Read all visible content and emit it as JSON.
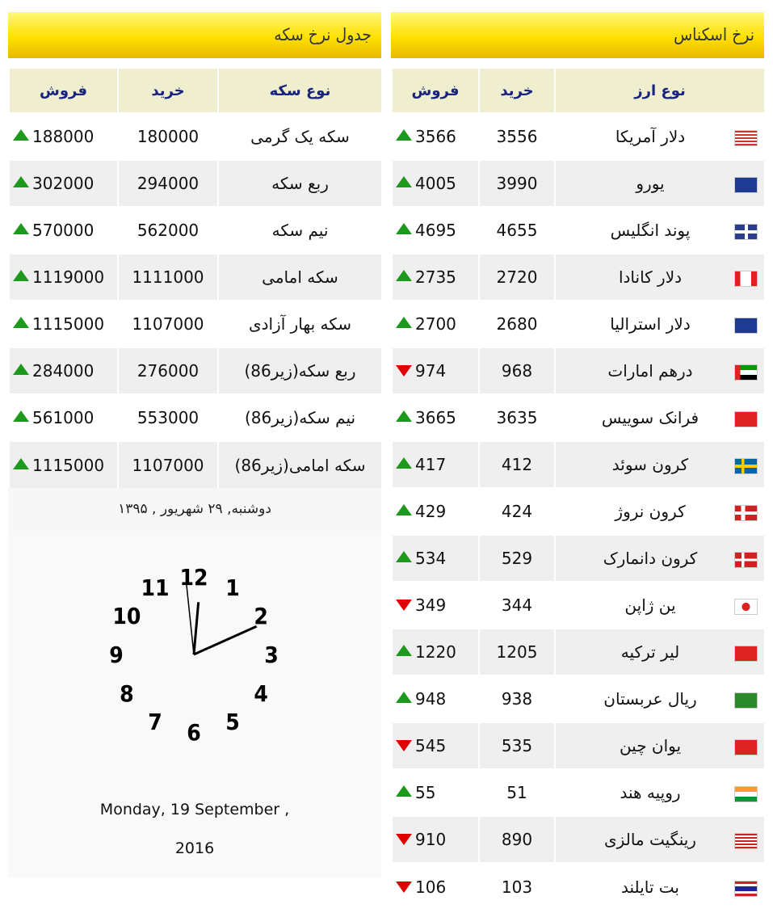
{
  "coin": {
    "title": "جدول نرخ سکه",
    "headers": {
      "name": "نوع سکه",
      "buy": "خرید",
      "sell": "فروش"
    },
    "rows": [
      {
        "name": "سکه یک گرمی",
        "buy": "180000",
        "sell": "188000",
        "trend": "up"
      },
      {
        "name": "ربع سکه",
        "buy": "294000",
        "sell": "302000",
        "trend": "up"
      },
      {
        "name": "نیم سکه",
        "buy": "562000",
        "sell": "570000",
        "trend": "up"
      },
      {
        "name": "سکه امامی",
        "buy": "1111000",
        "sell": "1119000",
        "trend": "up"
      },
      {
        "name": "سکه بهار آزادی",
        "buy": "1107000",
        "sell": "1115000",
        "trend": "up"
      },
      {
        "name": "ربع سکه(زیر86)",
        "buy": "276000",
        "sell": "284000",
        "trend": "up"
      },
      {
        "name": "نیم سکه(زیر86)",
        "buy": "553000",
        "sell": "561000",
        "trend": "up"
      },
      {
        "name": "سکه امامی(زیر86)",
        "buy": "1107000",
        "sell": "1115000",
        "trend": "up"
      }
    ],
    "date_fa": "دوشنبه, ۲۹ شهریور , ۱۳۹۵",
    "clock": {
      "time": "12:10:59"
    },
    "date_en_line1": "Monday, 19 September ,",
    "date_en_line2": "2016"
  },
  "currency": {
    "title": "نرخ اسکناس",
    "headers": {
      "name": "نوع ارز",
      "buy": "خرید",
      "sell": "فروش"
    },
    "rows": [
      {
        "name": "دلار آمریکا",
        "buy": "3556",
        "sell": "3566",
        "trend": "up",
        "flag": "us-flag"
      },
      {
        "name": "یورو",
        "buy": "3990",
        "sell": "4005",
        "trend": "up",
        "flag": "eu-flag"
      },
      {
        "name": "پوند انگلیس",
        "buy": "4655",
        "sell": "4695",
        "trend": "up",
        "flag": "uk-flag"
      },
      {
        "name": "دلار کانادا",
        "buy": "2720",
        "sell": "2735",
        "trend": "up",
        "flag": "ca-flag"
      },
      {
        "name": "دلار استرالیا",
        "buy": "2680",
        "sell": "2700",
        "trend": "up",
        "flag": "au-flag"
      },
      {
        "name": "درهم امارات",
        "buy": "968",
        "sell": "974",
        "trend": "down",
        "flag": "ae-flag"
      },
      {
        "name": "فرانک سوییس",
        "buy": "3635",
        "sell": "3665",
        "trend": "up",
        "flag": "ch-flag"
      },
      {
        "name": "کرون سوئد",
        "buy": "412",
        "sell": "417",
        "trend": "up",
        "flag": "se-flag"
      },
      {
        "name": "کرون نروژ",
        "buy": "424",
        "sell": "429",
        "trend": "up",
        "flag": "no-flag"
      },
      {
        "name": "کرون دانمارک",
        "buy": "529",
        "sell": "534",
        "trend": "up",
        "flag": "dk-flag"
      },
      {
        "name": "ین ژاپن",
        "buy": "344",
        "sell": "349",
        "trend": "down",
        "flag": "jp-flag"
      },
      {
        "name": "لیر ترکیه",
        "buy": "1205",
        "sell": "1220",
        "trend": "up",
        "flag": "tr-flag"
      },
      {
        "name": "ریال عربستان",
        "buy": "938",
        "sell": "948",
        "trend": "up",
        "flag": "sa-flag"
      },
      {
        "name": "یوان چین",
        "buy": "535",
        "sell": "545",
        "trend": "down",
        "flag": "cn-flag"
      },
      {
        "name": "روپیه هند",
        "buy": "51",
        "sell": "55",
        "trend": "up",
        "flag": "in-flag"
      },
      {
        "name": "رینگیت مالزی",
        "buy": "890",
        "sell": "910",
        "trend": "down",
        "flag": "my-flag"
      },
      {
        "name": "بت تایلند",
        "buy": "103",
        "sell": "106",
        "trend": "down",
        "flag": "th-flag"
      }
    ]
  },
  "colors": {
    "up": "#1d9a1d",
    "down": "#e00000",
    "header": "#ffe000",
    "col_header_text": "#1a237e"
  }
}
